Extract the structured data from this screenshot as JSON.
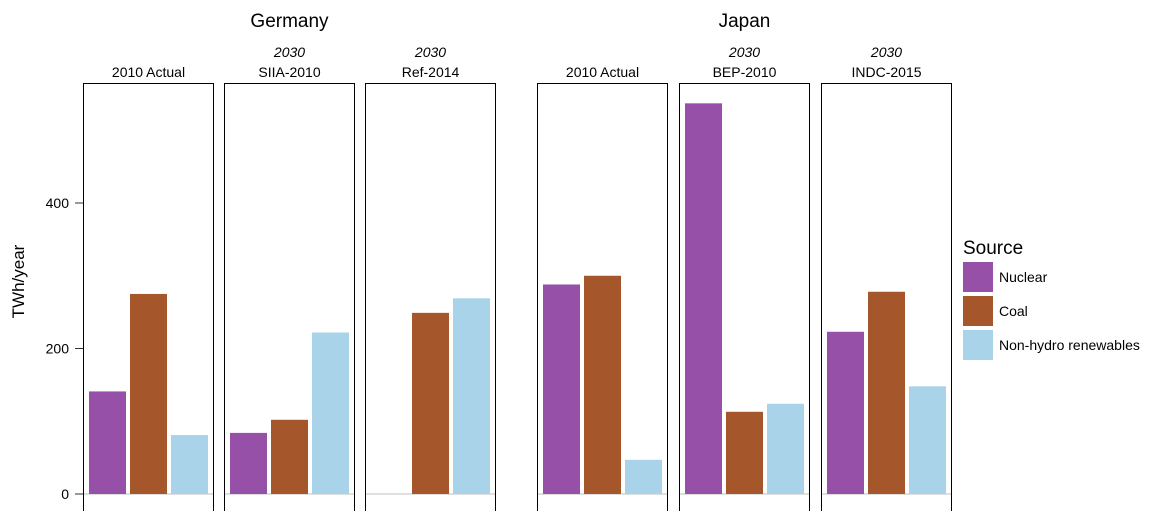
{
  "chart_data": {
    "type": "bar",
    "ylabel": "TWh/year",
    "ylim": [
      0,
      550
    ],
    "yticks": [
      0,
      200,
      400
    ],
    "grid": false,
    "legend": {
      "title": "Source",
      "placement": "right",
      "entries": [
        "Nuclear",
        "Coal",
        "Non-hydro renewables"
      ]
    },
    "colors": {
      "Nuclear": "#9650A8",
      "Coal": "#A6562B",
      "Non-hydro renewables": "#A8D3E8"
    },
    "groups": [
      {
        "country": "Germany",
        "panels": [
          {
            "year": "",
            "label": "2010 Actual",
            "values": [
              141,
              275,
              81
            ]
          },
          {
            "year": "2030",
            "label": "SIIA-2010",
            "values": [
              84,
              102,
              222
            ]
          },
          {
            "year": "2030",
            "label": "Ref-2014",
            "values": [
              0,
              249,
              269
            ]
          }
        ]
      },
      {
        "country": "Japan",
        "panels": [
          {
            "year": "",
            "label": "2010 Actual",
            "values": [
              288,
              300,
              47
            ]
          },
          {
            "year": "2030",
            "label": "BEP-2010",
            "values": [
              537,
              113,
              124
            ]
          },
          {
            "year": "2030",
            "label": "INDC-2015",
            "values": [
              223,
              278,
              148
            ]
          }
        ]
      }
    ]
  }
}
